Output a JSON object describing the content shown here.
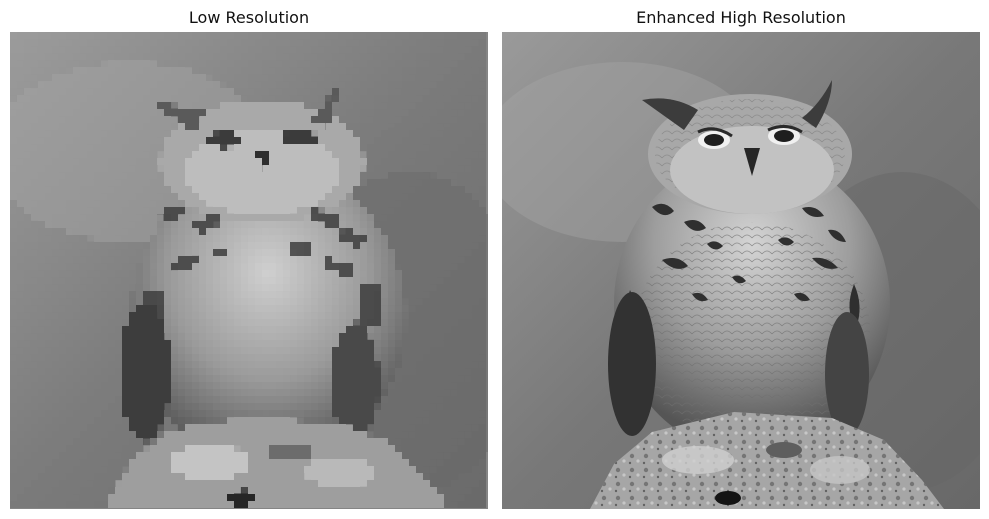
{
  "panels": [
    {
      "title": "Low Resolution",
      "quality": "pixelated"
    },
    {
      "title": "Enhanced High Resolution",
      "quality": "sharp"
    }
  ],
  "palette": {
    "background": "#ffffff",
    "sky_light": "#9a9a9a",
    "sky_dark": "#6d6d6d",
    "owl_body": "#8c8c8c",
    "owl_light": "#c9c9c9",
    "owl_dark": "#3a3a3a",
    "rock_light": "#b5b5b5",
    "rock_dark": "#4b4b4b"
  }
}
